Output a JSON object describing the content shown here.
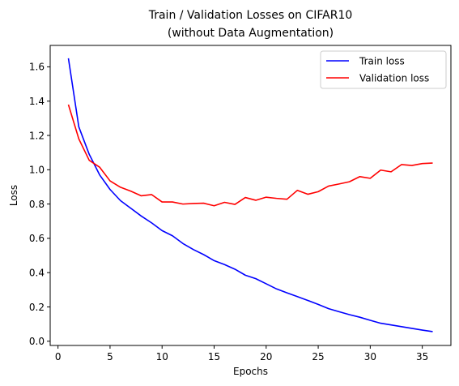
{
  "chart_data": {
    "type": "line",
    "title": [
      "Train / Validation Losses on CIFAR10",
      "(without Data Augmentation)"
    ],
    "xlabel": "Epochs",
    "ylabel": "Loss",
    "xlim": [
      -0.75,
      37.75
    ],
    "ylim": [
      -0.0246,
      1.725
    ],
    "xticks": [
      0,
      5,
      10,
      15,
      20,
      25,
      30,
      35
    ],
    "yticks": [
      0.0,
      0.2,
      0.4,
      0.6,
      0.8,
      1.0,
      1.2,
      1.4,
      1.6
    ],
    "ytick_labels": [
      "0.0",
      "0.2",
      "0.4",
      "0.6",
      "0.8",
      "1.0",
      "1.2",
      "1.4",
      "1.6"
    ],
    "grid": false,
    "legend_position": "top-right",
    "x": [
      1,
      2,
      3,
      4,
      5,
      6,
      7,
      8,
      9,
      10,
      11,
      12,
      13,
      14,
      15,
      16,
      17,
      18,
      19,
      20,
      21,
      22,
      23,
      24,
      25,
      26,
      27,
      28,
      29,
      30,
      31,
      32,
      33,
      34,
      35,
      36
    ],
    "series": [
      {
        "name": "Train loss",
        "color": "#0000ff",
        "values": [
          1.65,
          1.25,
          1.09,
          0.97,
          0.885,
          0.82,
          0.775,
          0.73,
          0.69,
          0.645,
          0.615,
          0.57,
          0.535,
          0.505,
          0.47,
          0.447,
          0.42,
          0.385,
          0.365,
          0.335,
          0.305,
          0.282,
          0.26,
          0.238,
          0.215,
          0.19,
          0.172,
          0.155,
          0.14,
          0.122,
          0.105,
          0.095,
          0.085,
          0.075,
          0.065,
          0.056
        ]
      },
      {
        "name": "Validation loss",
        "color": "#ff0000",
        "values": [
          1.38,
          1.18,
          1.055,
          1.015,
          0.935,
          0.898,
          0.875,
          0.848,
          0.855,
          0.812,
          0.812,
          0.8,
          0.803,
          0.805,
          0.79,
          0.81,
          0.798,
          0.838,
          0.822,
          0.84,
          0.833,
          0.828,
          0.88,
          0.857,
          0.872,
          0.905,
          0.917,
          0.93,
          0.96,
          0.95,
          0.998,
          0.988,
          1.03,
          1.025,
          1.036,
          1.039
        ]
      }
    ]
  }
}
